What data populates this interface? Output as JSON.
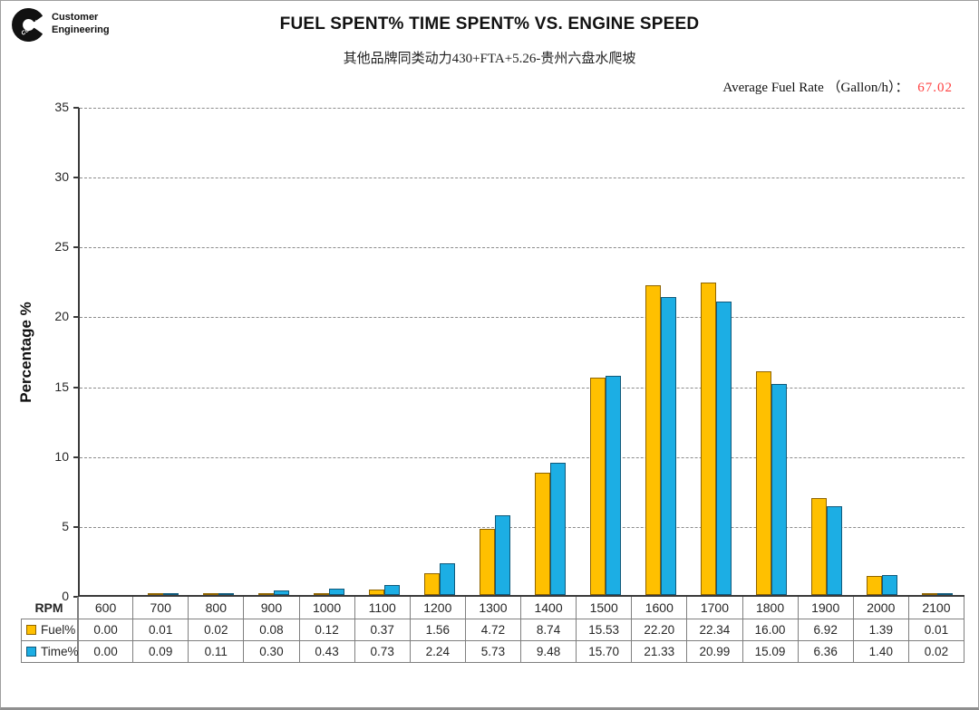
{
  "header": {
    "logo": {
      "brand": "Cummins",
      "line1": "Customer",
      "line2": "Engineering"
    },
    "title": "FUEL SPENT% TIME SPENT% VS. ENGINE SPEED",
    "subtitle": "其他品牌同类动力430+FTA+5.26-贵州六盘水爬坡",
    "avg_fuel_rate_label": "Average Fuel Rate （Gallon/h）：",
    "avg_fuel_rate_value": "67.02",
    "avg_fuel_rate_value_color": "#ff4040"
  },
  "chart_data": {
    "type": "bar",
    "title": "FUEL SPENT% TIME SPENT% VS. ENGINE SPEED",
    "subtitle": "其他品牌同类动力430+FTA+5.26-贵州六盘水爬坡",
    "annotation": "Average Fuel Rate （Gallon/h）： 67.02",
    "categories": [
      600,
      700,
      800,
      900,
      1000,
      1100,
      1200,
      1300,
      1400,
      1500,
      1600,
      1700,
      1800,
      1900,
      2000,
      2100
    ],
    "series": [
      {
        "name": "Fuel%",
        "color": "#FFC000",
        "border_color": "#8f6400",
        "values": [
          0.0,
          0.01,
          0.02,
          0.08,
          0.12,
          0.37,
          1.56,
          4.72,
          8.74,
          15.53,
          22.2,
          22.34,
          16.0,
          6.92,
          1.39,
          0.01
        ]
      },
      {
        "name": "Time%",
        "color": "#1caee4",
        "border_color": "#10597a",
        "values": [
          0.0,
          0.09,
          0.11,
          0.3,
          0.43,
          0.73,
          2.24,
          5.73,
          9.48,
          15.7,
          21.33,
          20.99,
          15.09,
          6.36,
          1.4,
          0.02
        ]
      }
    ],
    "xlabel": "RPM",
    "ylabel": "Percentage %",
    "ylim": [
      0,
      35
    ],
    "ytick_step": 5,
    "grid": "horizontal-dashed",
    "legend_position": "table-rows-below-chart"
  },
  "table": {
    "corner_label": "RPM"
  }
}
